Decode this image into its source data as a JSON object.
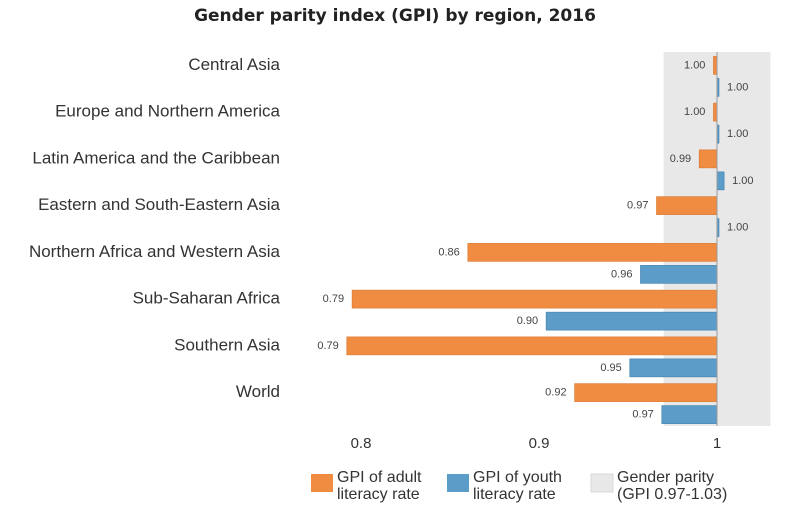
{
  "chart_data": {
    "type": "bar",
    "orientation": "horizontal",
    "title": "Gender parity index (GPI) by region, 2016",
    "categories": [
      "Central Asia",
      "Europe and Northern America",
      "Latin America and the Caribbean",
      "Eastern and South-Eastern Asia",
      "Northern Africa and Western Asia",
      "Sub-Saharan Africa",
      "Southern Asia",
      "World"
    ],
    "series": [
      {
        "name": "GPI of adult literacy rate",
        "color": "#f08c42",
        "values": [
          0.998,
          0.998,
          0.99,
          0.966,
          0.86,
          0.795,
          0.792,
          0.92
        ],
        "labels": [
          "1.00",
          "1.00",
          "0.99",
          "0.97",
          "0.86",
          "0.79",
          "0.79",
          "0.92"
        ]
      },
      {
        "name": "GPI of youth literacy rate",
        "color": "#5b9cc9",
        "values": [
          1.001,
          1.0,
          1.004,
          1.0,
          0.957,
          0.904,
          0.951,
          0.969
        ],
        "labels": [
          "1.00",
          "1.00",
          "1.00",
          "1.00",
          "0.96",
          "0.90",
          "0.95",
          "0.97"
        ]
      }
    ],
    "parity_band": {
      "name": "Gender parity (GPI 0.97-1.03)",
      "name_lines": [
        "Gender parity",
        "(GPI 0.97-1.03)"
      ],
      "range": [
        0.97,
        1.03
      ],
      "color": "#e8e8e8"
    },
    "x_ticks": [
      "0.8",
      "0.9",
      "1"
    ],
    "xlim": [
      0.78,
      1.03
    ],
    "legend": {
      "placement": "bottom",
      "items": [
        {
          "lines": [
            "GPI of adult",
            "literacy rate"
          ],
          "color": "#f08c42"
        },
        {
          "lines": [
            "GPI of youth",
            "literacy rate"
          ],
          "color": "#5b9cc9"
        },
        {
          "lines": [
            "Gender parity",
            "(GPI 0.97-1.03)"
          ],
          "color": "#e8e8e8"
        }
      ]
    }
  }
}
